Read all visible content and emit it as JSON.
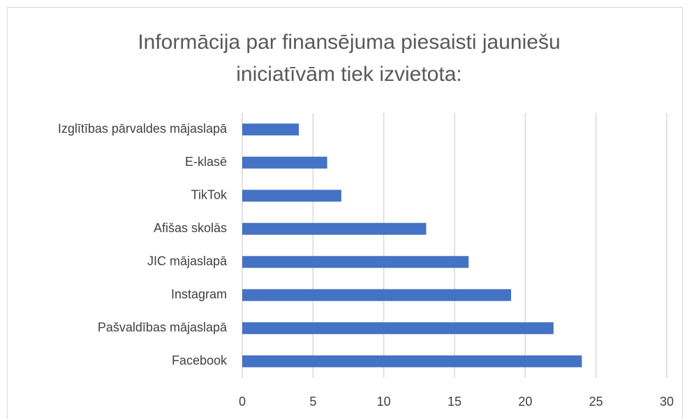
{
  "chart_data": {
    "type": "bar",
    "orientation": "horizontal",
    "title": "Informācija par finansējuma piesaisti jauniešu iniciatīvām tiek izvietota:",
    "categories": [
      "Izglītības pārvaldes mājaslapā",
      "E-klasē",
      "TikTok",
      "Afišas skolās",
      "JIC mājaslapā",
      "Instagram",
      "Pašvaldības mājaslapā",
      "Facebook"
    ],
    "values": [
      4,
      6,
      7,
      13,
      16,
      19,
      22,
      24
    ],
    "color": "#4472c4",
    "xlim": [
      0,
      30
    ],
    "xticks": [
      0,
      5,
      10,
      15,
      20,
      25,
      30
    ],
    "grid": true
  }
}
